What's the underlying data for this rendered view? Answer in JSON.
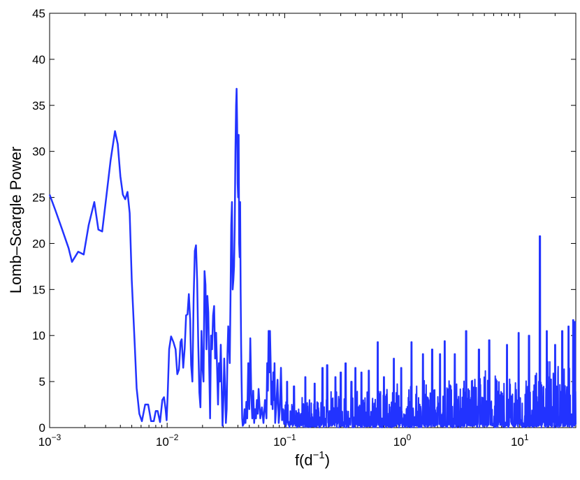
{
  "chart_data": {
    "type": "line",
    "title": "",
    "xlabel": "f(d",
    "xlabel_sup": "−1",
    "xlabel_close": ")",
    "ylabel": "Lomb–Scargle Power",
    "xscale": "log",
    "xlim": [
      0.001,
      30
    ],
    "ylim": [
      0,
      45
    ],
    "grid": false,
    "legend": "none",
    "line_color": "#2233ff",
    "y_ticks": [
      0,
      5,
      10,
      15,
      20,
      25,
      30,
      35,
      40,
      45
    ],
    "x_ticks": [
      {
        "value": 0.001,
        "base": "10",
        "exp": "−3"
      },
      {
        "value": 0.01,
        "base": "10",
        "exp": "−2"
      },
      {
        "value": 0.1,
        "base": "10",
        "exp": "−1"
      },
      {
        "value": 1,
        "base": "10",
        "exp": "0"
      },
      {
        "value": 10,
        "base": "10",
        "exp": "1"
      }
    ],
    "series": [
      {
        "values": [
          [
            0.001,
            25.3
          ],
          [
            0.00112,
            23.6
          ],
          [
            0.00128,
            21.5
          ],
          [
            0.00145,
            19.5
          ],
          [
            0.00155,
            18.0
          ],
          [
            0.00175,
            19.1
          ],
          [
            0.00195,
            18.8
          ],
          [
            0.00215,
            22.0
          ],
          [
            0.0024,
            24.5
          ],
          [
            0.0026,
            21.5
          ],
          [
            0.0028,
            21.3
          ],
          [
            0.003,
            24.5
          ],
          [
            0.0033,
            29.0
          ],
          [
            0.0036,
            32.2
          ],
          [
            0.0038,
            30.8
          ],
          [
            0.004,
            27.3
          ],
          [
            0.0042,
            25.3
          ],
          [
            0.0044,
            24.8
          ],
          [
            0.0046,
            25.6
          ],
          [
            0.0048,
            23.3
          ],
          [
            0.005,
            16.0
          ],
          [
            0.0053,
            9.0
          ],
          [
            0.0055,
            4.3
          ],
          [
            0.0058,
            1.5
          ],
          [
            0.0061,
            0.7
          ],
          [
            0.0065,
            2.5
          ],
          [
            0.0069,
            2.5
          ],
          [
            0.0073,
            0.7
          ],
          [
            0.0077,
            0.7
          ],
          [
            0.008,
            1.8
          ],
          [
            0.0083,
            1.8
          ],
          [
            0.0087,
            0.6
          ],
          [
            0.0091,
            3.0
          ],
          [
            0.0094,
            3.3
          ],
          [
            0.0097,
            2.0
          ],
          [
            0.0099,
            0.8
          ],
          [
            0.0101,
            3.5
          ],
          [
            0.0104,
            8.5
          ],
          [
            0.0108,
            9.9
          ],
          [
            0.0113,
            9.3
          ],
          [
            0.0118,
            8.5
          ],
          [
            0.0122,
            5.8
          ],
          [
            0.0126,
            6.3
          ],
          [
            0.013,
            9.3
          ],
          [
            0.0133,
            9.6
          ],
          [
            0.0137,
            6.5
          ],
          [
            0.0141,
            8.6
          ],
          [
            0.0145,
            12.2
          ],
          [
            0.0149,
            12.3
          ],
          [
            0.0153,
            14.5
          ],
          [
            0.0157,
            11.7
          ],
          [
            0.016,
            6.8
          ],
          [
            0.0164,
            5.0
          ],
          [
            0.0168,
            14.0
          ],
          [
            0.0172,
            19.2
          ],
          [
            0.0176,
            19.8
          ],
          [
            0.018,
            16.0
          ],
          [
            0.0184,
            9.0
          ],
          [
            0.0188,
            3.8
          ],
          [
            0.0192,
            2.2
          ],
          [
            0.0196,
            10.5
          ],
          [
            0.02,
            6.5
          ],
          [
            0.0204,
            5.0
          ],
          [
            0.0208,
            17.0
          ],
          [
            0.0212,
            15.5
          ],
          [
            0.0216,
            8.5
          ],
          [
            0.022,
            14.3
          ],
          [
            0.0224,
            12.5
          ],
          [
            0.0228,
            6.6
          ],
          [
            0.0232,
            1.0
          ],
          [
            0.0236,
            10.0
          ],
          [
            0.0241,
            8.5
          ],
          [
            0.0246,
            12.2
          ],
          [
            0.0251,
            13.2
          ],
          [
            0.0256,
            7.5
          ],
          [
            0.0261,
            10.3
          ],
          [
            0.0266,
            6.5
          ],
          [
            0.0271,
            2.5
          ],
          [
            0.0276,
            7.0
          ],
          [
            0.0281,
            5.0
          ],
          [
            0.0286,
            9.0
          ],
          [
            0.0291,
            4.5
          ],
          [
            0.0296,
            0.2
          ],
          [
            0.0301,
            3.0
          ],
          [
            0.0306,
            7.5
          ],
          [
            0.0311,
            4.5
          ],
          [
            0.0316,
            0.5
          ],
          [
            0.0321,
            2.0
          ],
          [
            0.0326,
            8.0
          ],
          [
            0.0331,
            11.0
          ],
          [
            0.0336,
            9.0
          ],
          [
            0.0341,
            7.0
          ],
          [
            0.0346,
            14.0
          ],
          [
            0.0351,
            22.0
          ],
          [
            0.0356,
            24.5
          ],
          [
            0.0361,
            15.0
          ],
          [
            0.0366,
            16.0
          ],
          [
            0.0371,
            17.5
          ],
          [
            0.0376,
            22.0
          ],
          [
            0.0381,
            30.0
          ],
          [
            0.0386,
            35.0
          ],
          [
            0.039,
            36.8
          ],
          [
            0.0394,
            33.0
          ],
          [
            0.0398,
            26.5
          ],
          [
            0.0402,
            25.0
          ],
          [
            0.0406,
            31.8
          ],
          [
            0.041,
            20.0
          ],
          [
            0.0414,
            18.5
          ],
          [
            0.0418,
            24.5
          ],
          [
            0.0422,
            15.0
          ],
          [
            0.0426,
            9.0
          ],
          [
            0.043,
            5.0
          ],
          [
            0.0435,
            1.0
          ],
          [
            0.044,
            0.2
          ],
          [
            0.0448,
            0.4
          ],
          [
            0.0456,
            2.0
          ],
          [
            0.0464,
            0.5
          ],
          [
            0.0472,
            2.8
          ],
          [
            0.048,
            1.0
          ],
          [
            0.049,
            7.0
          ],
          [
            0.05,
            2.0
          ],
          [
            0.051,
            9.7
          ],
          [
            0.052,
            3.5
          ],
          [
            0.053,
            1.0
          ],
          [
            0.054,
            4.0
          ],
          [
            0.055,
            0.5
          ],
          [
            0.056,
            2.0
          ],
          [
            0.057,
            1.0
          ],
          [
            0.058,
            3.0
          ],
          [
            0.059,
            1.5
          ],
          [
            0.06,
            4.2
          ],
          [
            0.062,
            1.0
          ],
          [
            0.064,
            2.2
          ],
          [
            0.066,
            0.5
          ],
          [
            0.068,
            3.0
          ],
          [
            0.07,
            1.0
          ],
          [
            0.071,
            7.0
          ],
          [
            0.072,
            4.0
          ],
          [
            0.073,
            10.5
          ],
          [
            0.074,
            6.0
          ],
          [
            0.075,
            10.5
          ],
          [
            0.076,
            7.0
          ],
          [
            0.077,
            2.5
          ],
          [
            0.078,
            5.0
          ],
          [
            0.079,
            2.0
          ],
          [
            0.08,
            6.0
          ],
          [
            0.081,
            3.0
          ],
          [
            0.082,
            7.0
          ],
          [
            0.083,
            0.5
          ],
          [
            0.085,
            2.5
          ],
          [
            0.087,
            5.2
          ],
          [
            0.089,
            0.5
          ],
          [
            0.091,
            2.0
          ],
          [
            0.093,
            6.5
          ],
          [
            0.095,
            0.8
          ],
          [
            0.097,
            2.0
          ],
          [
            0.099,
            0.4
          ],
          [
            0.1,
            0.8
          ]
        ]
      }
    ]
  },
  "noise": {
    "x_start": 0.1,
    "x_end": 30,
    "steps": 1500,
    "spikes": [
      [
        0.105,
        5.0
      ],
      [
        0.12,
        4.5
      ],
      [
        0.15,
        5.5
      ],
      [
        0.18,
        4.8
      ],
      [
        0.21,
        6.5
      ],
      [
        0.23,
        6.8
      ],
      [
        0.27,
        5.5
      ],
      [
        0.3,
        6.0
      ],
      [
        0.33,
        7.0
      ],
      [
        0.37,
        5.0
      ],
      [
        0.4,
        6.5
      ],
      [
        0.45,
        6.0
      ],
      [
        0.52,
        6.2
      ],
      [
        0.62,
        9.3
      ],
      [
        0.7,
        5.5
      ],
      [
        0.85,
        7.5
      ],
      [
        0.98,
        6.5
      ],
      [
        1.2,
        9.3
      ],
      [
        1.5,
        8.0
      ],
      [
        1.8,
        8.5
      ],
      [
        2.1,
        8.0
      ],
      [
        2.3,
        9.4
      ],
      [
        2.8,
        8.0
      ],
      [
        3.5,
        10.5
      ],
      [
        4.5,
        8.5
      ],
      [
        5.5,
        9.5
      ],
      [
        7.8,
        9.0
      ],
      [
        9.8,
        10.3
      ],
      [
        12.0,
        10.0
      ],
      [
        14.85,
        20.8
      ],
      [
        17.0,
        10.5
      ],
      [
        20.0,
        9.0
      ],
      [
        23.0,
        10.5
      ],
      [
        26.0,
        11.0
      ],
      [
        28.5,
        11.7
      ],
      [
        29.5,
        11.5
      ]
    ]
  }
}
